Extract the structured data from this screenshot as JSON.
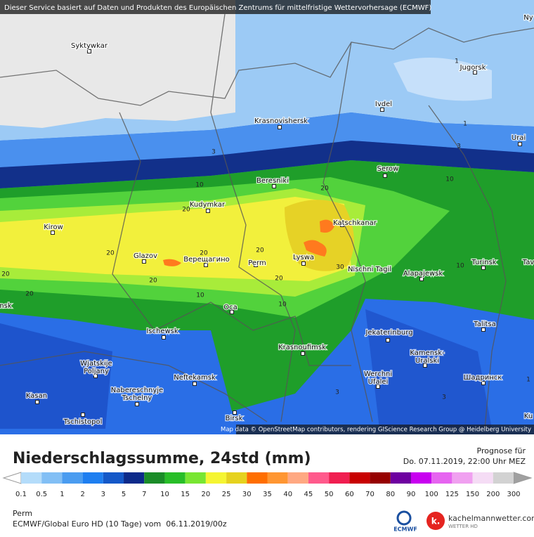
{
  "header": {
    "notice": "Dieser Service basiert auf Daten und Produkten des Europäischen Zentrums für mittelfristige Wettervorhersage (ECMWF)"
  },
  "map": {
    "cities": [
      "Syktywkar",
      "Jugorsk",
      "Ivdel",
      "Krasnovishersk",
      "Urai",
      "Serow",
      "Beresniki",
      "Kudymkar",
      "Kirow",
      "Katschkanar",
      "Glazov",
      "Верещагино",
      "Perm",
      "Lyswa",
      "Nischni Tagil",
      "Alapajewsk",
      "Turinsk",
      "Tav",
      "Ny",
      "nsk",
      "Oca",
      "Ischewsk",
      "Jekaterinburg",
      "Talitsa",
      "Krasnoufimsk",
      [
        "Kamensk-",
        "Uralski"
      ],
      [
        "Wjatskije",
        "Poljany"
      ],
      "Neftekamsk",
      [
        "Werchni",
        "Ufalei"
      ],
      [
        "Nabereschnyje",
        "Tschelny"
      ],
      "Шадринск",
      "Kasan",
      "Tschistopol",
      "Birsk",
      "Ku"
    ],
    "contour_labels": [
      1,
      1,
      3,
      3,
      10,
      10,
      20,
      20,
      20,
      20,
      20,
      20,
      20,
      20,
      20,
      30,
      10,
      10,
      10,
      3,
      3,
      1
    ],
    "attribution": "Map data © OpenStreetMap contributors, rendering GIScience Research Group @ Heidelberg University"
  },
  "title": "Niederschlagssumme, 24std (mm)",
  "forecast": {
    "label": "Prognose für",
    "time": "Do. 07.11.2019, 22:00 Uhr MEZ"
  },
  "legend": {
    "ticks": [
      0.1,
      0.5,
      1,
      2,
      3,
      5,
      7,
      10,
      15,
      20,
      25,
      30,
      35,
      40,
      45,
      50,
      60,
      70,
      80,
      90,
      100,
      125,
      150,
      200,
      300
    ],
    "colors": [
      "#b4dcfa",
      "#82bff5",
      "#4a9cf0",
      "#1e7ef0",
      "#1458c8",
      "#0c2a8a",
      "#1a8c28",
      "#28be28",
      "#78e632",
      "#f5f532",
      "#e6d21e",
      "#ff6e00",
      "#ff9632",
      "#ffa882",
      "#ff5a8c",
      "#f01e50",
      "#c80000",
      "#960000",
      "#6e00a0",
      "#c800f0",
      "#e664f0",
      "#f0a0f0",
      "#f5dcf5",
      "#d2d2d2"
    ]
  },
  "location": "Perm",
  "model_run": "ECMWF/Global Euro HD (10 Tage) vom  06.11.2019/00z",
  "logos": {
    "ecmwf": "ECMWF",
    "site_mark": "k.",
    "site": "kachelmannwetter.com",
    "site_sub": "WETTER HD"
  }
}
